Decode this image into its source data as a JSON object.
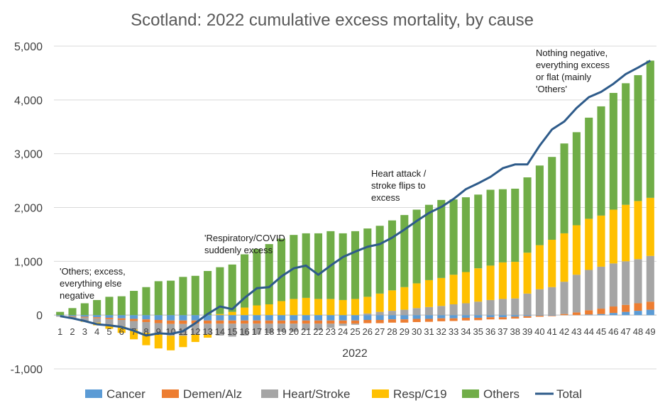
{
  "chart_data": {
    "type": "bar",
    "stacked": true,
    "title": "Scotland: 2022 cumulative excess mortality, by cause",
    "xlabel": "2022",
    "ylabel": "",
    "ylim": [
      -1000,
      5000
    ],
    "yticks": [
      -1000,
      0,
      1000,
      2000,
      3000,
      4000,
      5000
    ],
    "ytick_labels": [
      "-1,000",
      "0",
      "1,000",
      "2,000",
      "3,000",
      "4,000",
      "5,000"
    ],
    "grid": true,
    "legend_position": "bottom",
    "categories": [
      "1",
      "2",
      "3",
      "4",
      "5",
      "6",
      "7",
      "8",
      "9",
      "10",
      "11",
      "12",
      "13",
      "14",
      "15",
      "16",
      "17",
      "18",
      "19",
      "20",
      "21",
      "22",
      "23",
      "24",
      "25",
      "26",
      "27",
      "28",
      "29",
      "30",
      "31",
      "32",
      "33",
      "34",
      "35",
      "36",
      "37",
      "38",
      "39",
      "40",
      "41",
      "42",
      "43",
      "44",
      "45",
      "46",
      "47",
      "48",
      "49"
    ],
    "series": [
      {
        "name": "Cancer",
        "type": "bar",
        "color": "#5b9bd5",
        "values": [
          -10,
          -20,
          -30,
          -40,
          -50,
          -60,
          -70,
          -80,
          -90,
          -100,
          -100,
          -100,
          -100,
          -100,
          -100,
          -100,
          -100,
          -100,
          -100,
          -100,
          -100,
          -100,
          -100,
          -100,
          -100,
          -90,
          -90,
          -80,
          -80,
          -70,
          -70,
          -60,
          -60,
          -50,
          -50,
          -40,
          -40,
          -30,
          -20,
          -10,
          -10,
          0,
          0,
          10,
          20,
          40,
          60,
          80,
          100
        ]
      },
      {
        "name": "Demen/Alz",
        "type": "bar",
        "color": "#ed7d31",
        "values": [
          0,
          -10,
          -15,
          -20,
          -25,
          -30,
          -40,
          -50,
          -60,
          -65,
          -65,
          -60,
          -60,
          -60,
          -60,
          -60,
          -60,
          -60,
          -60,
          -60,
          -60,
          -60,
          -60,
          -60,
          -60,
          -60,
          -60,
          -60,
          -60,
          -60,
          -55,
          -55,
          -50,
          -50,
          -45,
          -40,
          -40,
          -35,
          -30,
          -20,
          -10,
          20,
          50,
          80,
          100,
          120,
          130,
          140,
          150
        ]
      },
      {
        "name": "Heart/Stroke",
        "type": "bar",
        "color": "#a5a5a5",
        "values": [
          -20,
          -40,
          -60,
          -80,
          -100,
          -120,
          -160,
          -200,
          -200,
          -220,
          -220,
          -200,
          -200,
          -220,
          -240,
          -220,
          -200,
          -180,
          -150,
          -150,
          -120,
          -120,
          -80,
          -40,
          -20,
          30,
          60,
          80,
          100,
          130,
          150,
          170,
          200,
          220,
          250,
          280,
          300,
          310,
          400,
          480,
          520,
          600,
          700,
          750,
          780,
          800,
          810,
          820,
          850
        ]
      },
      {
        "name": "Resp/C19",
        "type": "bar",
        "color": "#ffc000",
        "values": [
          0,
          0,
          -20,
          -50,
          -80,
          -120,
          -180,
          -230,
          -270,
          -270,
          -210,
          -140,
          -60,
          20,
          60,
          140,
          180,
          200,
          260,
          300,
          320,
          300,
          300,
          280,
          300,
          310,
          340,
          380,
          420,
          460,
          500,
          520,
          550,
          580,
          620,
          640,
          680,
          680,
          760,
          820,
          880,
          900,
          920,
          950,
          950,
          1000,
          1050,
          1080,
          1080
        ]
      },
      {
        "name": "Others",
        "type": "bar",
        "color": "#70ad47",
        "values": [
          60,
          130,
          220,
          280,
          340,
          350,
          450,
          520,
          630,
          640,
          710,
          730,
          820,
          870,
          880,
          990,
          1050,
          1120,
          1160,
          1190,
          1200,
          1220,
          1260,
          1240,
          1260,
          1270,
          1260,
          1300,
          1340,
          1370,
          1400,
          1450,
          1400,
          1390,
          1370,
          1410,
          1360,
          1360,
          1400,
          1480,
          1540,
          1670,
          1730,
          1880,
          2030,
          2170,
          2260,
          2340,
          2550
        ]
      },
      {
        "name": "Total",
        "type": "line",
        "color": "#2e5b8a",
        "values": [
          -20,
          -60,
          -110,
          -170,
          -190,
          -220,
          -290,
          -380,
          -340,
          -350,
          -300,
          -150,
          20,
          160,
          110,
          320,
          500,
          520,
          720,
          870,
          920,
          750,
          920,
          1080,
          1180,
          1270,
          1320,
          1440,
          1590,
          1750,
          1900,
          2010,
          2160,
          2340,
          2450,
          2570,
          2730,
          2800,
          2800,
          3150,
          3450,
          3600,
          3850,
          4050,
          4150,
          4300,
          4480,
          4600,
          4730
        ]
      }
    ],
    "annotations": [
      {
        "lines": [
          "'Others; excess,",
          "everything else",
          "negative"
        ]
      },
      {
        "lines": [
          "'Respiratory/COVID",
          "suddenly excess"
        ]
      },
      {
        "lines": [
          "Heart attack /",
          "stroke flips to",
          "excess"
        ]
      },
      {
        "lines": [
          "Nothing negative,",
          "everything excess",
          "or flat (mainly",
          "'Others'"
        ]
      }
    ]
  }
}
